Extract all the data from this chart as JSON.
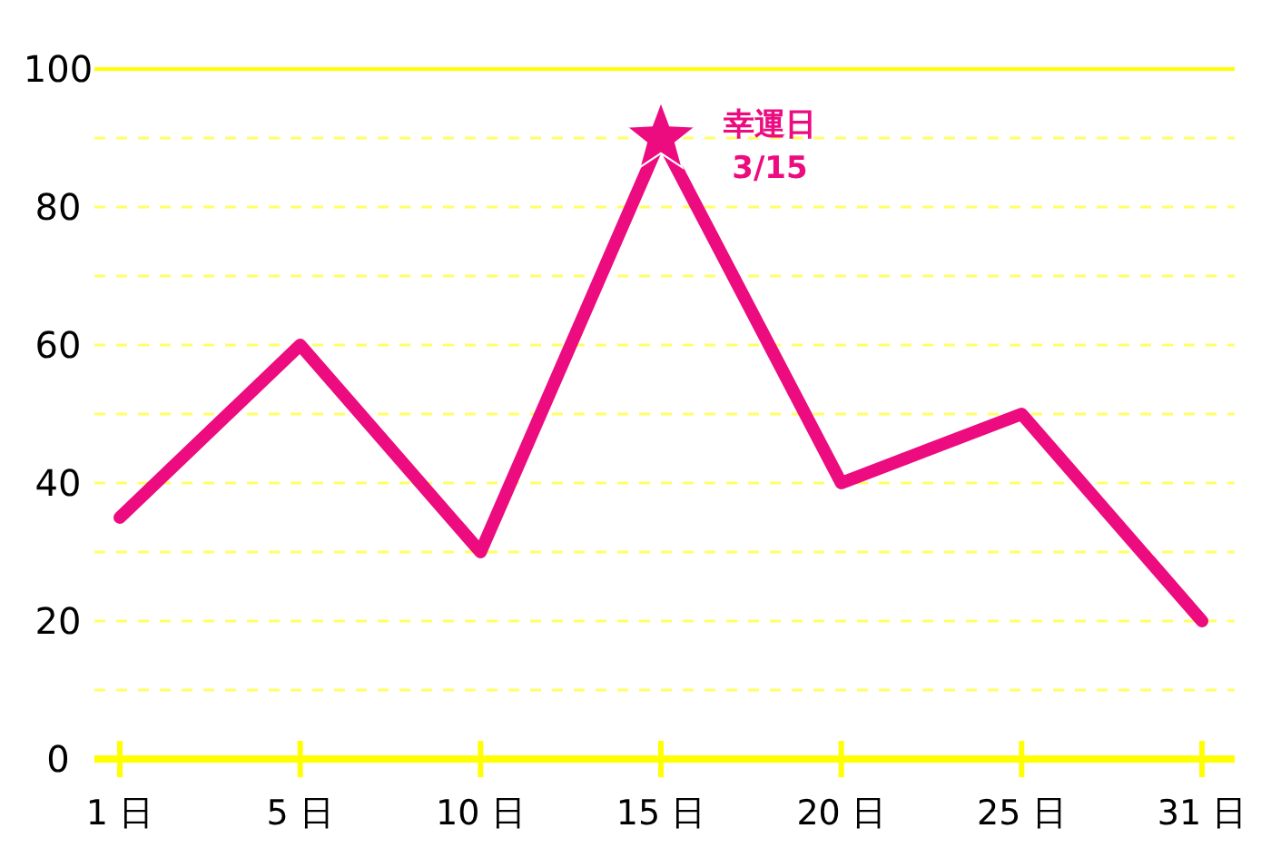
{
  "chart_data": {
    "type": "line",
    "categories": [
      "1 日",
      "5 日",
      "10 日",
      "15 日",
      "20 日",
      "25 日",
      "31 日"
    ],
    "series": [
      {
        "color": "#ec0c80",
        "values": [
          35,
          60,
          30,
          90,
          40,
          50,
          20
        ],
        "line_style": "solid"
      },
      {
        "type": "scatter",
        "color": "#ec0c80",
        "x": [
          "15 日"
        ],
        "values": [
          90
        ],
        "marker": "star"
      }
    ],
    "ylim": [
      0,
      100
    ],
    "yticks": [
      0,
      {
        "value": 10,
        "label": null
      },
      20,
      {
        "value": 30,
        "label": null
      },
      40,
      {
        "value": 50,
        "label": null
      },
      60,
      {
        "value": 70,
        "label": null
      },
      80,
      {
        "value": 90,
        "label": null
      },
      100
    ],
    "grid": "y",
    "annotations": [
      {
        "text": "幸運日\n3/15",
        "x": "15 日",
        "y": 90
      }
    ]
  }
}
